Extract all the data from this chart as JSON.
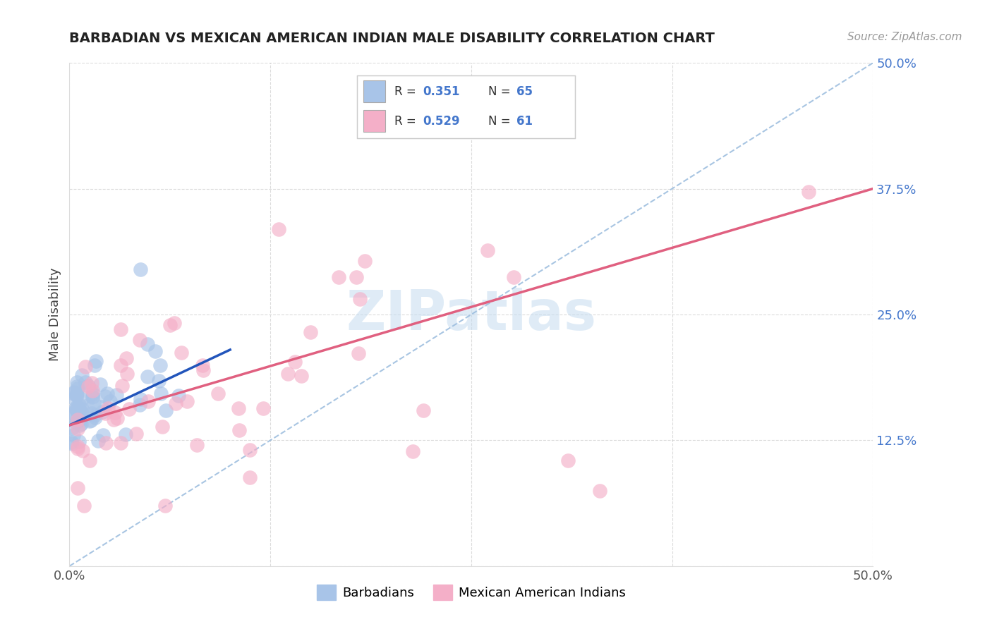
{
  "title": "BARBADIAN VS MEXICAN AMERICAN INDIAN MALE DISABILITY CORRELATION CHART",
  "source": "Source: ZipAtlas.com",
  "ylabel": "Male Disability",
  "xlim": [
    0.0,
    0.5
  ],
  "ylim": [
    0.0,
    0.5
  ],
  "xticks": [
    0.0,
    0.125,
    0.25,
    0.375,
    0.5
  ],
  "yticks": [
    0.0,
    0.125,
    0.25,
    0.375,
    0.5
  ],
  "xtick_labels": [
    "0.0%",
    "",
    "",
    "",
    "50.0%"
  ],
  "ytick_labels_right": [
    "",
    "12.5%",
    "25.0%",
    "37.5%",
    "50.0%"
  ],
  "legend_labels": [
    "Barbadians",
    "Mexican American Indians"
  ],
  "legend_r": [
    0.351,
    0.529
  ],
  "legend_n": [
    65,
    61
  ],
  "blue_color": "#a8c4e8",
  "pink_color": "#f4afc8",
  "blue_line_color": "#2255bb",
  "pink_line_color": "#e06080",
  "dash_color": "#aac8e8",
  "watermark": "ZIPatlas",
  "tick_color": "#4477cc",
  "background_color": "#ffffff",
  "grid_color": "#cccccc"
}
